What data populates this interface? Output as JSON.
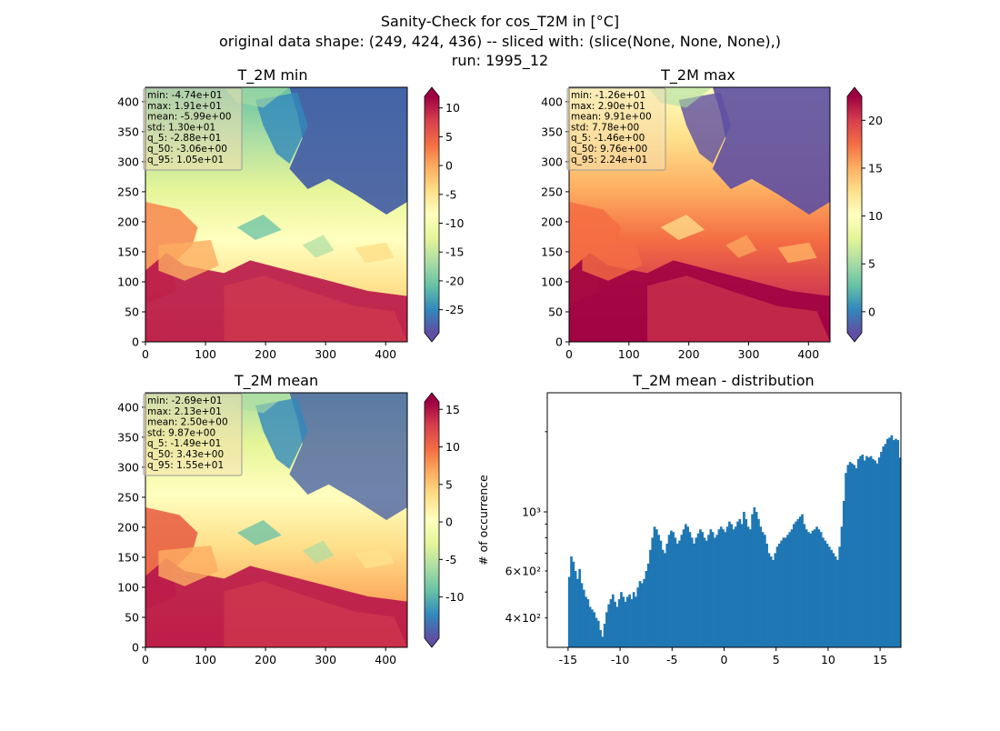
{
  "suptitle": {
    "line1": "Sanity-Check for cos_T2M in [°C]",
    "line2": "original data shape: (249, 424, 436) -- sliced with: (slice(None, None, None),)",
    "line3": "run: 1995_12"
  },
  "colors": {
    "hist_bar": "#1f77b4",
    "colormap": [
      "#5e4fa2",
      "#3288bd",
      "#66c2a5",
      "#abdda4",
      "#e6f598",
      "#ffffbf",
      "#fee08b",
      "#fdae61",
      "#f46d43",
      "#d53e4f",
      "#9e0142"
    ]
  },
  "chart_data": [
    {
      "type": "heatmap",
      "title": "T_2M min",
      "xlim": [
        0,
        436
      ],
      "ylim": [
        0,
        424
      ],
      "xticks": [
        0,
        100,
        200,
        300,
        400
      ],
      "yticks": [
        0,
        50,
        100,
        150,
        200,
        250,
        300,
        350,
        400
      ],
      "colorbar": {
        "min": -29,
        "max": 12,
        "ticks": [
          10,
          5,
          0,
          -5,
          -10,
          -15,
          -20,
          -25
        ]
      },
      "stats": [
        "min: -4.74e+01",
        "max: 1.91e+01",
        "mean: -5.99e+00",
        "std: 1.30e+01",
        "q_5: -2.88e+01",
        "q_50: -3.06e+00",
        "q_95: 1.05e+01"
      ]
    },
    {
      "type": "heatmap",
      "title": "T_2M max",
      "xlim": [
        0,
        436
      ],
      "ylim": [
        0,
        424
      ],
      "xticks": [
        0,
        100,
        200,
        300,
        400
      ],
      "yticks": [
        0,
        50,
        100,
        150,
        200,
        250,
        300,
        350,
        400
      ],
      "colorbar": {
        "min": -2.2,
        "max": 22.5,
        "ticks": [
          20,
          15,
          10,
          5,
          0
        ]
      },
      "stats": [
        "min: -1.26e+01",
        "max: 2.90e+01",
        "mean: 9.91e+00",
        "std: 7.78e+00",
        "q_5: -1.46e+00",
        "q_50: 9.76e+00",
        "q_95: 2.24e+01"
      ]
    },
    {
      "type": "heatmap",
      "title": "T_2M mean",
      "xlim": [
        0,
        436
      ],
      "ylim": [
        0,
        424
      ],
      "xticks": [
        0,
        100,
        200,
        300,
        400
      ],
      "yticks": [
        0,
        50,
        100,
        150,
        200,
        250,
        300,
        350,
        400
      ],
      "colorbar": {
        "min": -15.5,
        "max": 16,
        "ticks": [
          15,
          10,
          5,
          0,
          -5,
          -10
        ]
      },
      "stats": [
        "min: -2.69e+01",
        "max: 2.13e+01",
        "mean: 2.50e+00",
        "std: 9.87e+00",
        "q_5: -1.49e+01",
        "q_50: 3.43e+00",
        "q_95: 1.55e+01"
      ]
    },
    {
      "type": "bar",
      "title": "T_2M mean - distribution",
      "ylabel": "# of occurrence",
      "yscale": "log",
      "xlim": [
        -17,
        17
      ],
      "ylim": [
        310,
        2800
      ],
      "xticks": [
        -15,
        -10,
        -5,
        0,
        5,
        10,
        15
      ],
      "yticks_major": [
        {
          "value": 1000,
          "label": "10³"
        }
      ],
      "yticks_minor": [
        {
          "value": 400,
          "label": "4×10²"
        },
        {
          "value": 500,
          "label": ""
        },
        {
          "value": 600,
          "label": "6×10²"
        },
        {
          "value": 700,
          "label": ""
        },
        {
          "value": 800,
          "label": ""
        },
        {
          "value": 900,
          "label": ""
        },
        {
          "value": 2000,
          "label": ""
        }
      ],
      "bins": {
        "start": -15,
        "width": 0.2
      },
      "values": [
        570,
        680,
        650,
        600,
        560,
        610,
        540,
        510,
        480,
        470,
        440,
        430,
        420,
        400,
        390,
        360,
        340,
        380,
        420,
        450,
        470,
        490,
        460,
        440,
        470,
        500,
        480,
        460,
        480,
        490,
        470,
        500,
        480,
        520,
        550,
        540,
        560,
        600,
        640,
        720,
        800,
        880,
        860,
        820,
        780,
        720,
        700,
        760,
        820,
        850,
        840,
        800,
        760,
        780,
        820,
        860,
        900,
        880,
        840,
        800,
        760,
        800,
        830,
        860,
        840,
        800,
        780,
        820,
        860,
        840,
        800,
        820,
        860,
        880,
        860,
        840,
        880,
        920,
        900,
        860,
        880,
        920,
        940,
        900,
        1000,
        940,
        880,
        860,
        980,
        1040,
        1000,
        940,
        880,
        840,
        820,
        760,
        700,
        680,
        660,
        700,
        740,
        760,
        780,
        800,
        800,
        820,
        840,
        860,
        900,
        920,
        940,
        960,
        980,
        900,
        860,
        840,
        830,
        850,
        860,
        880,
        860,
        840,
        800,
        780,
        760,
        740,
        720,
        700,
        680,
        660,
        740,
        880,
        1100,
        1400,
        1500,
        1540,
        1520,
        1500,
        1460,
        1580,
        1620,
        1640,
        1560,
        1620,
        1600,
        1620,
        1580,
        1560,
        1520,
        1600,
        1680,
        1760,
        1800,
        1880,
        1900,
        1940,
        1860,
        1880,
        1860,
        1600,
        1560
      ]
    }
  ]
}
